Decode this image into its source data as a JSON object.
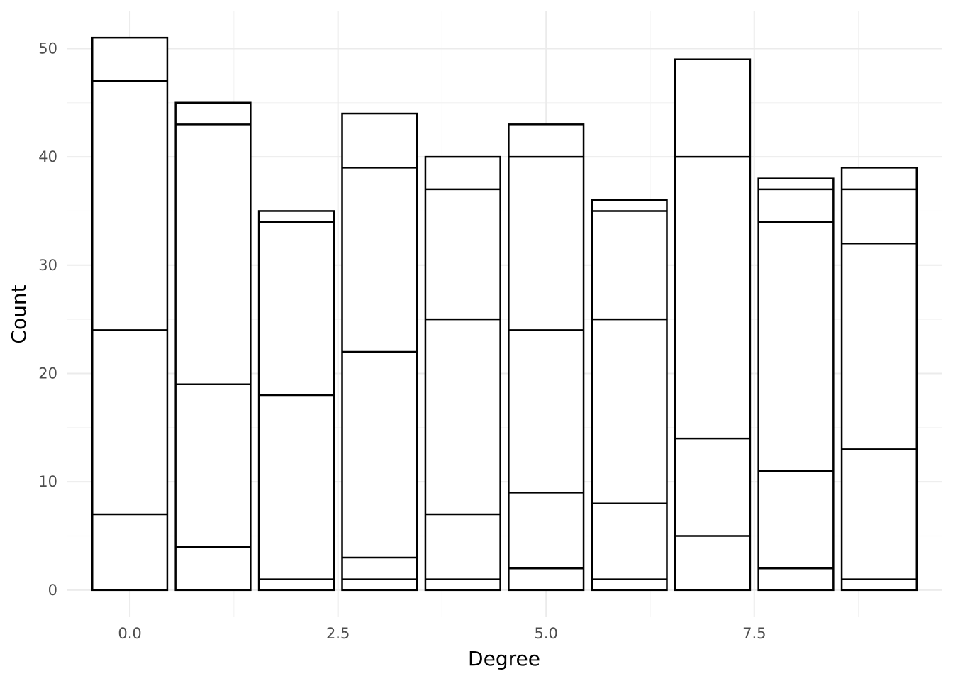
{
  "chart_data": {
    "type": "bar",
    "stacked": true,
    "title": "",
    "xlabel": "Degree",
    "ylabel": "Count",
    "x": [
      0,
      1,
      2,
      3,
      4,
      5,
      6,
      7,
      8,
      9
    ],
    "bar_width": 0.9,
    "xlim": [
      -0.75,
      9.75
    ],
    "ylim": [
      -2.5,
      53.5
    ],
    "x_ticks": [
      0,
      2.5,
      5,
      7.5
    ],
    "x_tick_labels": [
      "0.0",
      "2.5",
      "5.0",
      "7.5"
    ],
    "x_minor_ticks": [
      1.25,
      3.75,
      6.25,
      8.75
    ],
    "y_ticks": [
      0,
      10,
      20,
      30,
      40,
      50
    ],
    "y_tick_labels": [
      "0",
      "10",
      "20",
      "30",
      "40",
      "50"
    ],
    "y_minor_ticks": [
      5,
      15,
      25,
      35,
      45
    ],
    "grid": true,
    "legend": "none",
    "fill_color": "#ffffff",
    "outline_color": "#000000",
    "cumulative_boundaries": [
      [
        0,
        7,
        24,
        47,
        51
      ],
      [
        0,
        4,
        19,
        43,
        45
      ],
      [
        0,
        1,
        18,
        34,
        35
      ],
      [
        0,
        1,
        3,
        22,
        39,
        44
      ],
      [
        0,
        1,
        7,
        25,
        37,
        40
      ],
      [
        0,
        2,
        9,
        24,
        40,
        43
      ],
      [
        0,
        1,
        8,
        25,
        35,
        36
      ],
      [
        0,
        5,
        14,
        40,
        49
      ],
      [
        0,
        2,
        11,
        34,
        37,
        38
      ],
      [
        0,
        1,
        13,
        32,
        37,
        39
      ]
    ],
    "totals": [
      51,
      45,
      35,
      44,
      40,
      43,
      36,
      49,
      38,
      39
    ]
  }
}
